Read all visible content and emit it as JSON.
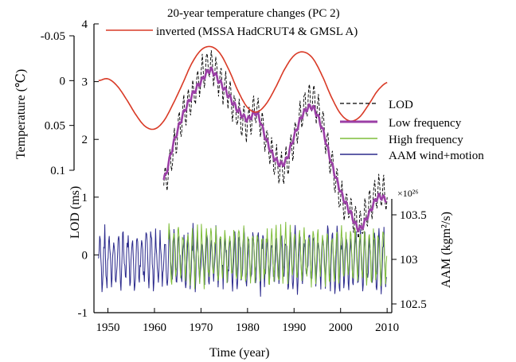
{
  "chart_data": {
    "type": "line",
    "title": "20-year temperature changes (PC 2)",
    "legend_placement": "right",
    "grid": false,
    "x_axis": {
      "label": "Time (year)",
      "range": [
        1947,
        2011
      ],
      "ticks": [
        "1950",
        "1960",
        "1970",
        "1980",
        "1990",
        "2000",
        "2010"
      ]
    },
    "lod_axis": {
      "label": "LOD (ms)",
      "range": [
        -1,
        4
      ],
      "ticks": [
        "-1",
        "0",
        "1",
        "2",
        "3",
        "4"
      ]
    },
    "temperature_axis": {
      "label": "Temperature (℃)",
      "inverted": true,
      "range": [
        -0.05,
        0.1
      ],
      "ticks": [
        "-0.05",
        "0",
        "0.05",
        "0.1"
      ]
    },
    "aam_axis": {
      "label": "AAM (kgm²/s)",
      "multiplier": "×10²⁶",
      "range": [
        102.5,
        103.5
      ],
      "ticks": [
        "102.5",
        "103",
        "103.5"
      ]
    },
    "series": [
      {
        "name": "inverted (MSSA HadCRUT4 & GMSL A)",
        "axis": "temperature",
        "color": "#d93a26",
        "x": [
          1948,
          1950,
          1952,
          1954,
          1956,
          1958,
          1960,
          1962,
          1964,
          1966,
          1968,
          1970,
          1972,
          1974,
          1976,
          1978,
          1980,
          1982,
          1984,
          1986,
          1988,
          1990,
          1992,
          1994,
          1996,
          1998,
          2000,
          2002,
          2004,
          2006,
          2008,
          2010
        ],
        "y": [
          0.0,
          -0.002,
          0.006,
          0.021,
          0.038,
          0.051,
          0.054,
          0.045,
          0.026,
          0.004,
          -0.019,
          -0.034,
          -0.038,
          -0.031,
          -0.012,
          0.012,
          0.03,
          0.035,
          0.026,
          0.008,
          -0.013,
          -0.028,
          -0.032,
          -0.025,
          -0.006,
          0.018,
          0.037,
          0.045,
          0.041,
          0.027,
          0.011,
          0.002
        ]
      },
      {
        "name": "LOD",
        "axis": "lod",
        "color": "#000000",
        "style": "dashed",
        "x": [
          1962,
          1964,
          1966,
          1968,
          1970,
          1972,
          1974,
          1976,
          1978,
          1980,
          1982,
          1984,
          1986,
          1988,
          1990,
          1992,
          1994,
          1996,
          1998,
          2000,
          2002,
          2004,
          2006,
          2008,
          2010
        ],
        "y": [
          1.2,
          1.8,
          2.4,
          2.7,
          3.1,
          3.3,
          3.0,
          2.8,
          2.4,
          2.3,
          2.5,
          2.0,
          1.6,
          1.5,
          2.0,
          2.5,
          2.7,
          2.3,
          1.6,
          1.0,
          0.8,
          0.5,
          0.8,
          1.1,
          1.0
        ]
      },
      {
        "name": "Low frequency",
        "axis": "lod",
        "color": "#9b3fa6",
        "x": [
          1962,
          1964,
          1966,
          1968,
          1970,
          1972,
          1974,
          1976,
          1978,
          1980,
          1982,
          1984,
          1986,
          1988,
          1990,
          1992,
          1994,
          1996,
          1998,
          2000,
          2002,
          2004,
          2006,
          2008,
          2010
        ],
        "y": [
          1.3,
          1.9,
          2.4,
          2.75,
          3.0,
          3.2,
          3.0,
          2.75,
          2.5,
          2.35,
          2.45,
          2.0,
          1.65,
          1.6,
          2.05,
          2.45,
          2.55,
          2.2,
          1.6,
          1.1,
          0.75,
          0.45,
          0.7,
          1.0,
          0.95
        ]
      },
      {
        "name": "High frequency",
        "axis": "lod",
        "color": "#7fbd3a",
        "x_range": [
          1963,
          2010
        ],
        "amplitude": 0.55,
        "center": 0.0
      },
      {
        "name": "AAM wind+motion",
        "axis": "aam",
        "color": "#2b2a8c",
        "x_range": [
          1948,
          2010
        ],
        "amplitude": 0.35,
        "center": 103.0
      }
    ]
  }
}
